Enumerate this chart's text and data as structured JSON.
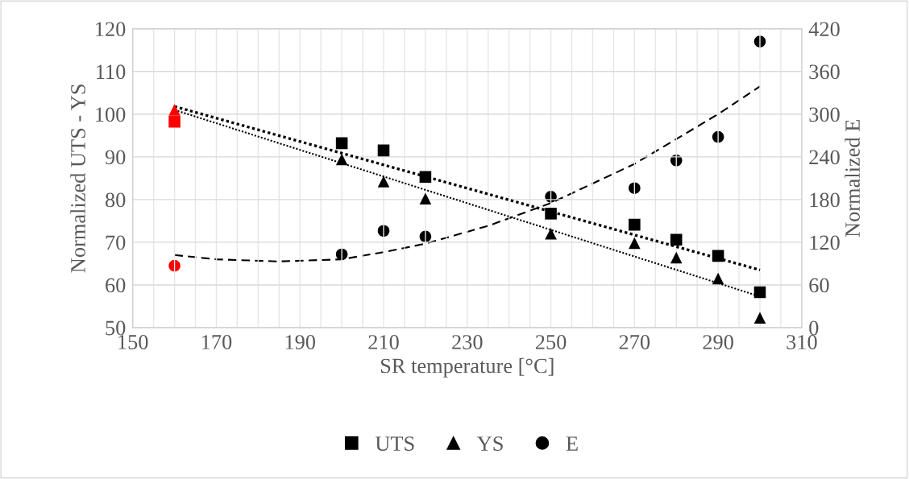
{
  "chart_data": {
    "type": "scatter",
    "xlabel": "SR temperature [°C]",
    "ylabel": "Normalized UTS - YS",
    "y2label": "Normalized E",
    "xlim": [
      150,
      310
    ],
    "xticks": [
      150,
      {
        "value": 155,
        "label": null
      },
      {
        "value": 160,
        "label": null
      },
      {
        "value": 165,
        "label": null
      },
      170,
      {
        "value": 175,
        "label": null
      },
      {
        "value": 180,
        "label": null
      },
      {
        "value": 185,
        "label": null
      },
      190,
      {
        "value": 195,
        "label": null
      },
      {
        "value": 200,
        "label": null
      },
      {
        "value": 205,
        "label": null
      },
      210,
      {
        "value": 215,
        "label": null
      },
      {
        "value": 220,
        "label": null
      },
      {
        "value": 225,
        "label": null
      },
      230,
      {
        "value": 235,
        "label": null
      },
      {
        "value": 240,
        "label": null
      },
      {
        "value": 245,
        "label": null
      },
      250,
      {
        "value": 255,
        "label": null
      },
      {
        "value": 260,
        "label": null
      },
      {
        "value": 265,
        "label": null
      },
      270,
      {
        "value": 275,
        "label": null
      },
      {
        "value": 280,
        "label": null
      },
      {
        "value": 285,
        "label": null
      },
      290,
      {
        "value": 295,
        "label": null
      },
      {
        "value": 300,
        "label": null
      },
      {
        "value": 305,
        "label": null
      },
      310
    ],
    "ylim": [
      50,
      120
    ],
    "yticks": [
      50,
      60,
      70,
      80,
      90,
      100,
      110,
      120
    ],
    "y2lim": [
      0,
      420
    ],
    "y2ticks": [
      0,
      60,
      120,
      180,
      240,
      300,
      360,
      420
    ],
    "grid": true,
    "legend": "bottom",
    "series": [
      {
        "name": "UTS",
        "marker": "square",
        "color": "#000000",
        "colors": [
          "#ff0000",
          "#000000",
          "#000000",
          "#000000",
          "#000000",
          "#000000",
          "#000000",
          "#000000",
          "#000000"
        ],
        "x": [
          160,
          200,
          210,
          220,
          250,
          270,
          280,
          290,
          300
        ],
        "values": [
          98.2,
          93.2,
          91.5,
          85.3,
          76.7,
          74.1,
          70.6,
          66.8,
          58.3
        ]
      },
      {
        "name": "YS",
        "marker": "triangle",
        "color": "#000000",
        "colors": [
          "#ff0000",
          "#000000",
          "#000000",
          "#000000",
          "#000000",
          "#000000",
          "#000000",
          "#000000",
          "#000000"
        ],
        "x": [
          160,
          200,
          210,
          220,
          250,
          270,
          280,
          290,
          300
        ],
        "values": [
          101,
          89.4,
          84.2,
          80.2,
          72,
          69.8,
          66.4,
          61.5,
          52.3
        ]
      },
      {
        "name": "E",
        "marker": "circle",
        "axis": "y2",
        "color": "#000000",
        "colors": [
          "#ff0000",
          "#000000",
          "#000000",
          "#000000",
          "#000000",
          "#000000",
          "#000000",
          "#000000",
          "#000000"
        ],
        "x": [
          160,
          200,
          210,
          220,
          250,
          270,
          280,
          290,
          300
        ],
        "values": [
          87,
          103,
          136,
          128,
          184,
          196,
          235,
          268,
          402
        ]
      },
      {
        "type": "line",
        "line_style": "dotted",
        "color": "#000000",
        "x": [
          160,
          300
        ],
        "values": [
          101.8,
          63.5
        ]
      },
      {
        "type": "line",
        "line_style": "dotted",
        "color": "#000000",
        "x": [
          160,
          300
        ],
        "values": [
          101,
          57.3
        ]
      },
      {
        "type": "line",
        "line_style": "dashed",
        "axis": "y2",
        "color": "#000000",
        "x": [
          160,
          170,
          185,
          200,
          210,
          220,
          235,
          250,
          270,
          290,
          300
        ],
        "values": [
          102,
          96,
          93,
          96,
          106,
          118,
          143,
          175,
          230,
          300,
          339
        ]
      }
    ]
  }
}
